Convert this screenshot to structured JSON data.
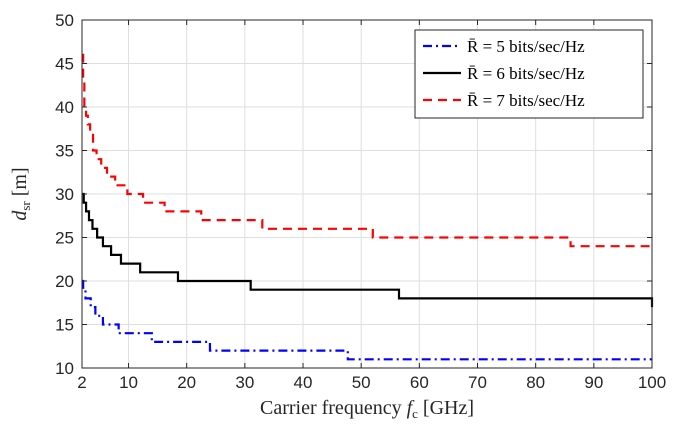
{
  "chart_data": {
    "type": "line",
    "xlabel": "Carrier frequency f_c [GHz]",
    "ylabel": "d_sr [m]",
    "xlim": [
      0,
      100
    ],
    "ylim": [
      10,
      50
    ],
    "x_ticks": [
      2,
      10,
      20,
      30,
      40,
      50,
      60,
      70,
      80,
      90,
      100
    ],
    "x_tick_labels": [
      "2",
      "10",
      "20",
      "30",
      "40",
      "50",
      "60",
      "70",
      "80",
      "90",
      "100"
    ],
    "y_ticks": [
      10,
      15,
      20,
      25,
      30,
      35,
      40,
      45,
      50
    ],
    "y_tick_labels": [
      "10",
      "15",
      "20",
      "25",
      "30",
      "35",
      "40",
      "45",
      "50"
    ],
    "grid": true,
    "legend_position": "top-right",
    "series": [
      {
        "name": "R̄ = 5 bits/sec/Hz",
        "color": "#0000ff",
        "style": "dashdot",
        "x": [
          2,
          2.2,
          2.6,
          3.5,
          4.3,
          5.6,
          8.3,
          14,
          24,
          47.7,
          100
        ],
        "y": [
          20,
          19,
          18,
          17,
          16,
          15,
          14,
          13,
          12,
          11,
          11
        ]
      },
      {
        "name": "R̄ = 6 bits/sec/Hz",
        "color": "#000000",
        "style": "solid",
        "x": [
          2,
          2.3,
          2.7,
          3.2,
          3.8,
          4.6,
          5.6,
          7,
          8.7,
          12,
          18.5,
          31,
          56.5,
          100
        ],
        "y": [
          30,
          29,
          28,
          27,
          26,
          25,
          24,
          23,
          22,
          21,
          20,
          19,
          18,
          17
        ],
        "y_end": 17
      },
      {
        "name": "R̄ = 7 bits/sec/Hz",
        "color": "#ff0000",
        "style": "dashed",
        "x": [
          2,
          2.2,
          2.4,
          2.7,
          3,
          3.4,
          3.9,
          4.5,
          5.3,
          6.3,
          7.7,
          9.8,
          12.5,
          16.2,
          22.5,
          33,
          52,
          86,
          100
        ],
        "y": [
          46,
          43,
          40,
          39,
          38,
          37,
          35,
          34,
          33,
          32,
          31,
          30,
          29,
          28,
          27,
          26,
          25,
          24,
          24
        ]
      }
    ]
  }
}
